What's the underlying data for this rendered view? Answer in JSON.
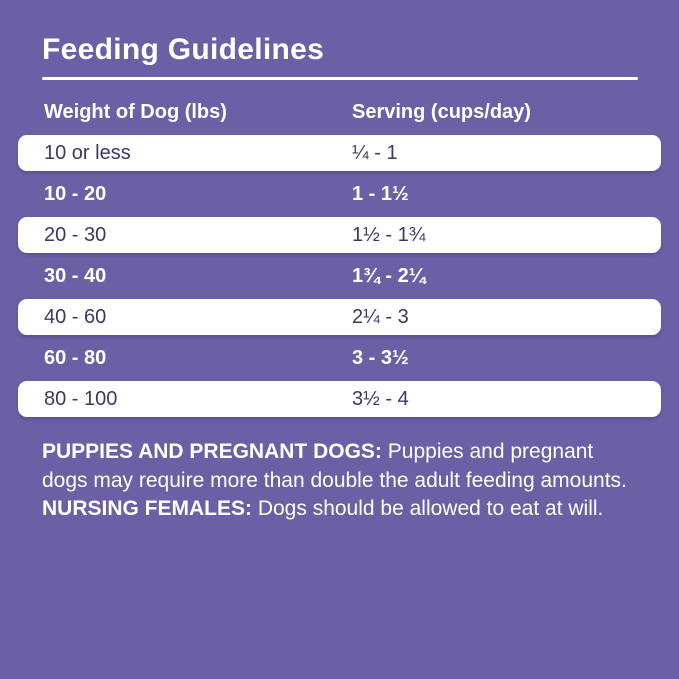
{
  "colors": {
    "background": "#6B60A5",
    "row_white_bg": "#FFFFFF",
    "row_dark_text": "#3D3863",
    "text_white": "#FFFFFF"
  },
  "title": "Feeding Guidelines",
  "table": {
    "headers": [
      "Weight of Dog (lbs)",
      "Serving (cups/day)"
    ],
    "rows": [
      {
        "weight": "10 or less",
        "serving": "¼ - 1",
        "style": "white"
      },
      {
        "weight": "10 - 20",
        "serving": "1 - 1½",
        "style": "purple"
      },
      {
        "weight": "20 - 30",
        "serving": "1½ - 1¾",
        "style": "white"
      },
      {
        "weight": "30 - 40",
        "serving": "1¾ - 2¼",
        "style": "purple"
      },
      {
        "weight": "40 - 60",
        "serving": "2¼ - 3",
        "style": "white"
      },
      {
        "weight": "60 - 80",
        "serving": "3 - 3½",
        "style": "purple"
      },
      {
        "weight": "80 - 100",
        "serving": "3½ - 4",
        "style": "white"
      }
    ]
  },
  "footnote": {
    "segments": [
      {
        "text": "PUPPIES AND PREGNANT DOGS:",
        "bold": true
      },
      {
        "text": " Puppies and pregnant dogs may require more than double the adult feeding amounts. ",
        "bold": false
      },
      {
        "text": "NURSING FEMALES:",
        "bold": true
      },
      {
        "text": " Dogs should be allowed to eat at will.",
        "bold": false
      }
    ]
  }
}
